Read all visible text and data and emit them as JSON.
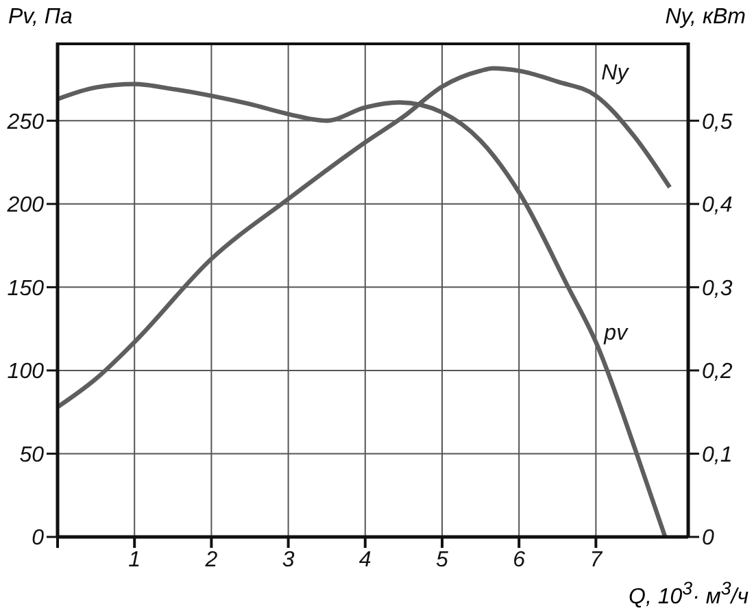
{
  "chart_data": {
    "type": "line",
    "xlabel": "Q, 10$^{3}$· м$^{3}$/ч",
    "ylabel": "Pv, Па",
    "y2label": "Ny, кВт",
    "xlim": [
      0,
      8.2
    ],
    "xticks": [
      {
        "value": 0,
        "label": null
      },
      1,
      2,
      3,
      4,
      5,
      6,
      7
    ],
    "ylim": [
      0,
      297
    ],
    "yticks": [
      0,
      50,
      100,
      150,
      200,
      250
    ],
    "y2lim": [
      0,
      0.594
    ],
    "y2ticks": [
      0,
      {
        "value": 0.1,
        "label": "0,1"
      },
      {
        "value": 0.2,
        "label": "0,2"
      },
      {
        "value": 0.3,
        "label": "0,3"
      },
      {
        "value": 0.4,
        "label": "0,4"
      },
      {
        "value": 0.5,
        "label": "0,5"
      }
    ],
    "grid": true,
    "marker": "none",
    "line_style": "solid",
    "series": [
      {
        "name": "pv",
        "color": "#5e5e5e",
        "x": [
          0,
          0.5,
          1,
          1.5,
          2,
          2.5,
          3,
          3.5,
          4,
          4.45,
          5,
          5.5,
          6,
          6.64,
          7,
          7.53,
          7.9
        ],
        "values": [
          263,
          270,
          272,
          269,
          265,
          260,
          254,
          250,
          258,
          261,
          255,
          238,
          207,
          150,
          117,
          50,
          0
        ]
      },
      {
        "name": "Ny",
        "color": "#5e5e5e",
        "axis": "y2",
        "x": [
          0,
          0.5,
          1,
          2,
          3,
          4,
          4.5,
          5,
          5.5,
          5.66,
          6,
          6.5,
          7,
          7.5,
          7.96
        ],
        "values": [
          0.156,
          0.19,
          0.234,
          0.334,
          0.406,
          0.474,
          0.505,
          0.541,
          0.56,
          0.563,
          0.56,
          0.547,
          0.53,
          0.481,
          0.42
        ]
      }
    ]
  }
}
